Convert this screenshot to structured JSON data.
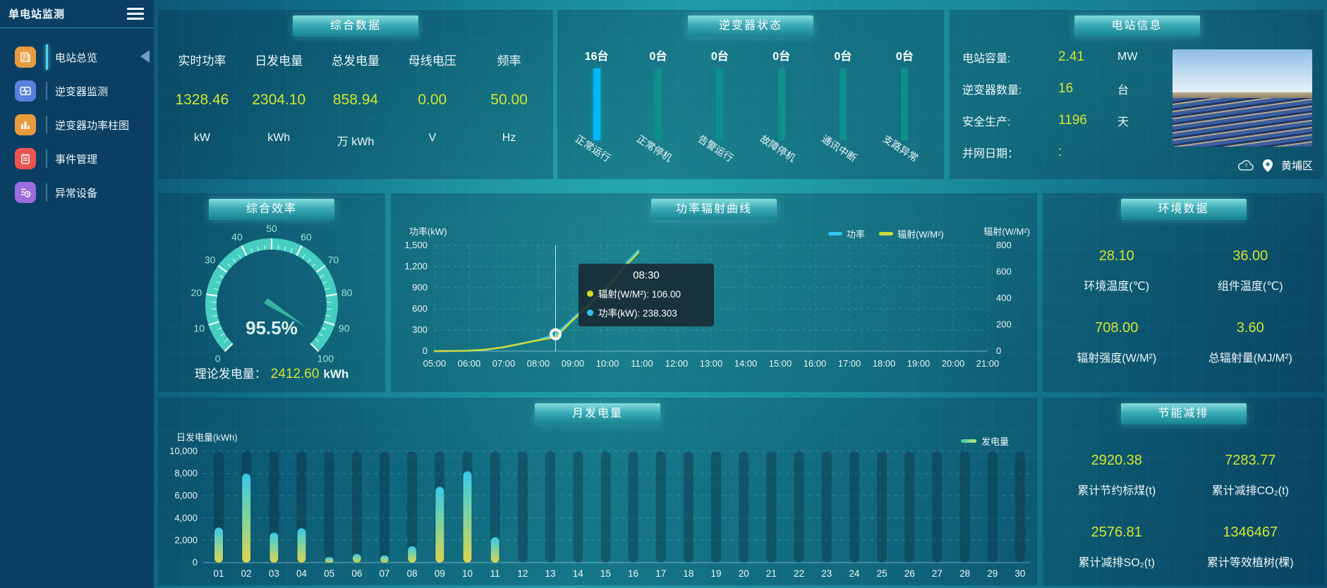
{
  "theme": {
    "value_color": "#d3e531",
    "cyan": "#00bdf2",
    "teal_bar": "#0e8f8c",
    "highlight_bar": "#00baf2",
    "gauge_arc": "#46cfc0"
  },
  "sidebar": {
    "title": "单电站监测",
    "items": [
      {
        "label": "电站总览",
        "active": true
      },
      {
        "label": "逆变器监测",
        "active": false
      },
      {
        "label": "逆变器功率柱图",
        "active": false
      },
      {
        "label": "事件管理",
        "active": false
      },
      {
        "label": "异常设备",
        "active": false
      }
    ]
  },
  "panels": {
    "summary": {
      "title": "综合数据",
      "stats": [
        {
          "label": "实时功率",
          "value": "1328.46",
          "unit": "kW"
        },
        {
          "label": "日发电量",
          "value": "2304.10",
          "unit": "kWh"
        },
        {
          "label": "总发电量",
          "value": "858.94",
          "unit": "万 kWh"
        },
        {
          "label": "母线电压",
          "value": "0.00",
          "unit": "V"
        },
        {
          "label": "频率",
          "value": "50.00",
          "unit": "Hz"
        }
      ]
    },
    "inverter_status": {
      "title": "逆变器状态",
      "items": [
        {
          "count": "16台",
          "label": "正常运行",
          "highlight": true
        },
        {
          "count": "0台",
          "label": "正常停机",
          "highlight": false
        },
        {
          "count": "0台",
          "label": "告警运行",
          "highlight": false
        },
        {
          "count": "0台",
          "label": "故障停机",
          "highlight": false
        },
        {
          "count": "0台",
          "label": "通讯中断",
          "highlight": false
        },
        {
          "count": "0台",
          "label": "支路异常",
          "highlight": false
        }
      ]
    },
    "station_info": {
      "title": "电站信息",
      "rows": [
        {
          "label": "电站容量:",
          "value": "2.41",
          "unit": "MW"
        },
        {
          "label": "逆变器数量:",
          "value": "16",
          "unit": "台"
        },
        {
          "label": "安全生产:",
          "value": "1196",
          "unit": "天"
        },
        {
          "label": "并网日期：",
          "value": ":",
          "unit": ""
        }
      ],
      "location": "黄埔区"
    },
    "efficiency": {
      "title": "综合效率",
      "footer": {
        "label": "理论发电量：",
        "value": "2412.60",
        "unit": "kWh"
      }
    },
    "power_radiation": {
      "title": "功率辐射曲线",
      "ylab_left": "功率(kW)",
      "ylab_right": "辐射(W/M²)"
    },
    "environment": {
      "title": "环境数据",
      "stats": [
        {
          "value": "28.10",
          "label": "环境温度(℃)"
        },
        {
          "value": "36.00",
          "label": "组件温度(℃)"
        },
        {
          "value": "708.00",
          "label": "辐射强度(W/M²)"
        },
        {
          "value": "3.60",
          "label": "总辐射量(MJ/M²)"
        }
      ]
    },
    "monthly": {
      "title": "月发电量",
      "ylabel": "日发电量(kWh)",
      "legend": "发电量"
    },
    "savings": {
      "title": "节能减排",
      "stats": [
        {
          "value": "2920.38",
          "label": "累计节约标煤(t)"
        },
        {
          "value": "7283.77",
          "label": "累计减排CO₂(t)"
        },
        {
          "value": "2576.81",
          "label": "累计减排SO₂(t)"
        },
        {
          "value": "1346467",
          "label": "累计等效植树(棵)"
        }
      ]
    }
  },
  "chart_data": [
    {
      "id": "efficiency_gauge",
      "type": "gauge",
      "title": "综合效率",
      "min": 0,
      "max": 100,
      "value": 95.5,
      "label": "95.5%",
      "major_tick": 10,
      "minor_tick": 2.5
    },
    {
      "id": "inverter_status",
      "type": "bar",
      "title": "逆变器状态",
      "categories": [
        "正常运行",
        "正常停机",
        "告警运行",
        "故障停机",
        "通讯中断",
        "支路异常"
      ],
      "values": [
        16,
        0,
        0,
        0,
        0,
        0
      ],
      "unit": "台"
    },
    {
      "id": "power_radiation",
      "type": "line",
      "title": "功率辐射曲线",
      "x_ticks": [
        "05:00",
        "06:00",
        "07:00",
        "08:00",
        "09:00",
        "10:00",
        "11:00",
        "12:00",
        "13:00",
        "14:00",
        "15:00",
        "16:00",
        "17:00",
        "18:00",
        "19:00",
        "20:00",
        "21:00"
      ],
      "x_range": [
        5,
        21
      ],
      "left_axis": {
        "label": "功率(kW)",
        "tick_values": [
          0,
          300,
          600,
          900,
          1200,
          1500
        ],
        "tick_labels": [
          "0",
          "300",
          "600",
          "900",
          "1,200",
          "1,500"
        ],
        "range": [
          0,
          1500
        ]
      },
      "right_axis": {
        "label": "辐射(W/M²)",
        "tick_values": [
          0,
          200,
          400,
          600,
          800
        ],
        "tick_labels": [
          "0",
          "200",
          "400",
          "600",
          "800"
        ],
        "range": [
          0,
          800
        ]
      },
      "legend": [
        {
          "name": "功率",
          "color": "#2ec7f0"
        },
        {
          "name": "辐射(W/M²)",
          "color": "#cfd93a"
        }
      ],
      "series": [
        {
          "name": "功率",
          "axis": "left",
          "color": "#2ec7f0",
          "x": [
            5,
            5.5,
            6,
            6.5,
            7,
            7.5,
            8,
            8.5,
            9,
            9.5,
            10,
            10.3,
            10.6,
            10.9
          ],
          "y": [
            0,
            1,
            6,
            20,
            55,
            105,
            160,
            238.303,
            460,
            690,
            920,
            1100,
            1280,
            1430
          ]
        },
        {
          "name": "辐射(W/M²)",
          "axis": "right",
          "color": "#cfd93a",
          "x": [
            5,
            5.5,
            6,
            6.5,
            7,
            7.5,
            8,
            8.5,
            9,
            9.5,
            10,
            10.3,
            10.6,
            10.9
          ],
          "y": [
            0,
            1,
            3,
            12,
            30,
            56,
            82,
            106,
            235,
            355,
            480,
            575,
            665,
            748
          ]
        }
      ],
      "tooltip": {
        "time": "08:30",
        "x_value": 8.5,
        "marker_y": 238.303,
        "rows": [
          {
            "color": "#d9d919",
            "text": "辐射(W/M²): 106.00"
          },
          {
            "color": "#2ec7f0",
            "text": "功率(kW): 238.303"
          }
        ]
      }
    },
    {
      "id": "monthly_energy",
      "type": "bar",
      "title": "月发电量",
      "ylabel": "日发电量(kWh)",
      "ylim": [
        0,
        10000
      ],
      "y_tick_values": [
        0,
        2000,
        4000,
        6000,
        8000,
        10000
      ],
      "y_tick_labels": [
        "0",
        "2,000",
        "4,000",
        "6,000",
        "8,000",
        "10,000"
      ],
      "legend": [
        {
          "name": "发电量"
        }
      ],
      "categories": [
        "01",
        "02",
        "03",
        "04",
        "05",
        "06",
        "07",
        "08",
        "09",
        "10",
        "11",
        "12",
        "13",
        "14",
        "15",
        "16",
        "17",
        "18",
        "19",
        "20",
        "21",
        "22",
        "23",
        "24",
        "25",
        "26",
        "27",
        "28",
        "29",
        "30"
      ],
      "values": [
        3150,
        7980,
        2700,
        3080,
        480,
        780,
        640,
        1470,
        6800,
        8200,
        2280,
        0,
        0,
        0,
        0,
        0,
        0,
        0,
        0,
        0,
        0,
        0,
        0,
        0,
        0,
        0,
        0,
        0,
        0,
        0
      ]
    }
  ]
}
